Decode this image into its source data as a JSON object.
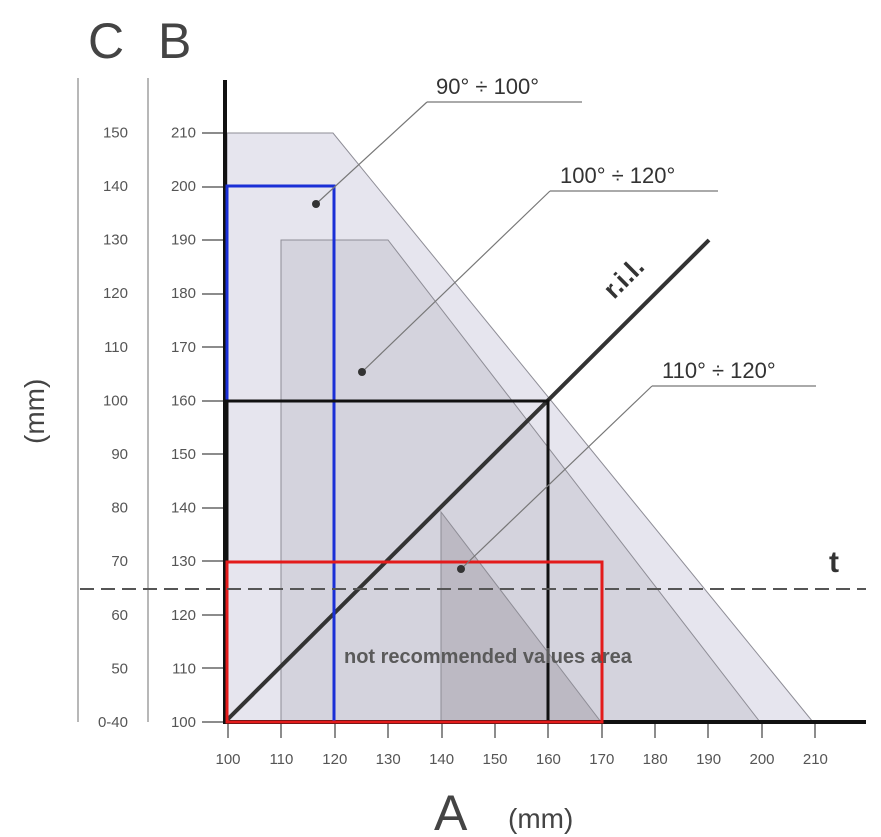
{
  "axes": {
    "a_letter": "A",
    "a_unit": "(mm)",
    "b_letter": "B",
    "c_letter": "C",
    "c_unit": "(mm)",
    "a_ticks": [
      "100",
      "110",
      "120",
      "130",
      "140",
      "150",
      "160",
      "170",
      "180",
      "190",
      "200",
      "210"
    ],
    "b_ticks": [
      "100",
      "110",
      "120",
      "130",
      "140",
      "150",
      "160",
      "170",
      "180",
      "190",
      "200",
      "210"
    ],
    "c_ticks": [
      "0-40",
      "50",
      "60",
      "70",
      "80",
      "90",
      "100",
      "110",
      "120",
      "130",
      "140",
      "150"
    ]
  },
  "zones": {
    "label_90_100": "90° ÷ 100°",
    "label_100_120": "100° ÷ 120°",
    "label_110_120": "110° ÷ 120°"
  },
  "ril_label": "r.i.l.",
  "t_label": "t",
  "not_recommended": "not recommended values area",
  "colors": {
    "blue": "#1a2fd6",
    "black": "#111111",
    "red": "#e31b1b",
    "zone_outer": "#e6e5ee",
    "zone_mid": "#cfced8",
    "zone_inner": "#b5b3bd"
  }
}
